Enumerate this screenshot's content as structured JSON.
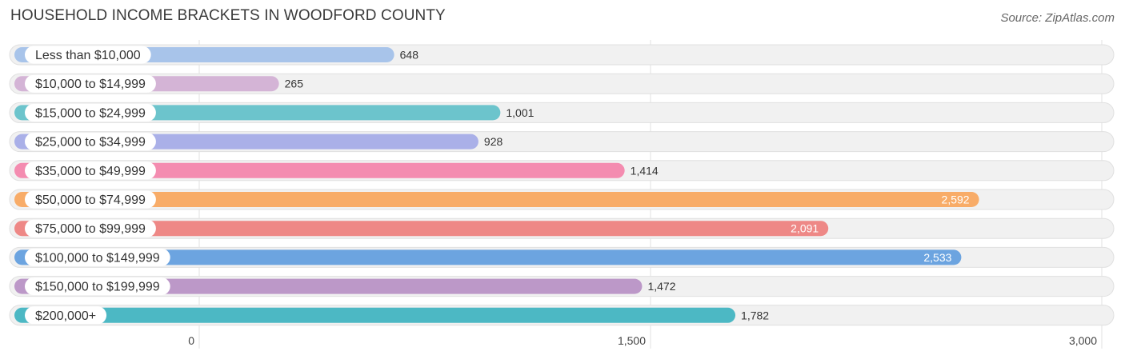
{
  "title": "HOUSEHOLD INCOME BRACKETS IN WOODFORD COUNTY",
  "source": "Source: ZipAtlas.com",
  "chart_data": {
    "type": "bar",
    "orientation": "horizontal",
    "title": "HOUSEHOLD INCOME BRACKETS IN WOODFORD COUNTY",
    "categories": [
      "Less than $10,000",
      "$10,000 to $14,999",
      "$15,000 to $24,999",
      "$25,000 to $34,999",
      "$35,000 to $49,999",
      "$50,000 to $74,999",
      "$75,000 to $99,999",
      "$100,000 to $149,999",
      "$150,000 to $199,999",
      "$200,000+"
    ],
    "values": [
      648,
      265,
      1001,
      928,
      1414,
      2592,
      2091,
      2533,
      1472,
      1782
    ],
    "value_labels": [
      "648",
      "265",
      "1,001",
      "928",
      "1,414",
      "2,592",
      "2,091",
      "2,533",
      "1,472",
      "1,782"
    ],
    "colors": [
      "#a8c4ea",
      "#d4b4d6",
      "#6cc4cc",
      "#aab0e8",
      "#f48cb0",
      "#f8ac68",
      "#ee8886",
      "#6ca4e0",
      "#bc98c8",
      "#4cb8c4"
    ],
    "xlim": [
      0,
      3000
    ],
    "xticks": [
      0,
      1500,
      3000
    ],
    "xtick_labels": [
      "0",
      "1,500",
      "3,000"
    ],
    "grid": true
  }
}
